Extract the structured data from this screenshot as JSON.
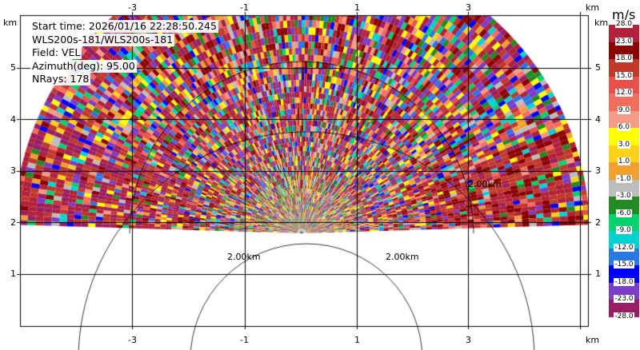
{
  "plot": {
    "header": {
      "start_time": "Start time: 2026/01/16 22:28:50.245",
      "station": "WLS200s-181/WLS200s-181",
      "field": "Field: VEL",
      "azimuth": "Azimuth(deg): 95.00",
      "nrays": "NRays: 178"
    },
    "x_ticks": [
      "-3",
      "-1",
      "1",
      "3"
    ],
    "x_unit": "km",
    "y_ticks": [
      "5",
      "4",
      "3",
      "2",
      "1"
    ],
    "y_unit": "km",
    "range_rings": [
      "2.00km",
      "2.00km",
      "2.00km"
    ]
  },
  "colorbar": {
    "unit": "m/s",
    "ticks": [
      "28.0",
      "23.0",
      "18.0",
      "15.0",
      "12.0",
      "9.0",
      "6.0",
      "3.0",
      "1.0",
      "-1.0",
      "-3.0",
      "-6.0",
      "-9.0",
      "-12.0",
      "-15.0",
      "-18.0",
      "-23.0",
      "-28.0"
    ],
    "colors": [
      "#b2213a",
      "#8b0000",
      "#c0392b",
      "#e8504a",
      "#f46d5f",
      "#f59a84",
      "#ffff00",
      "#ffd21a",
      "#f0a030",
      "#bdbdbd",
      "#238b23",
      "#00d26e",
      "#00d2d2",
      "#2878e6",
      "#0000ff",
      "#7b3cc8",
      "#9a1e64"
    ]
  }
}
